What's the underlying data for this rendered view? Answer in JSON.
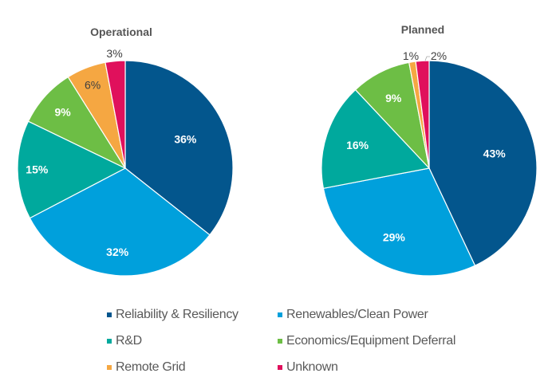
{
  "chart_data": [
    {
      "type": "pie",
      "title": "Operational",
      "categories": [
        "Reliability & Resiliency",
        "Renewables/Clean Power",
        "R&D",
        "Economics/Equipment Deferral",
        "Remote Grid",
        "Unknown"
      ],
      "values": [
        36,
        32,
        15,
        9,
        6,
        3
      ],
      "labels": [
        "36%",
        "32%",
        "15%",
        "9%",
        "6%",
        "3%"
      ],
      "start": "12 o'clock, clockwise"
    },
    {
      "type": "pie",
      "title": "Planned",
      "categories": [
        "Reliability & Resiliency",
        "Renewables/Clean Power",
        "R&D",
        "Economics/Equipment Deferral",
        "Remote Grid",
        "Unknown"
      ],
      "values": [
        43,
        29,
        16,
        9,
        1,
        2
      ],
      "labels": [
        "43%",
        "29%",
        "16%",
        "9%",
        "1%",
        "2%"
      ],
      "start": "12 o'clock, clockwise"
    }
  ],
  "colors": {
    "Reliability & Resiliency": "#03568D",
    "Renewables/Clean Power": "#00A0DC",
    "R&D": "#00A99D",
    "Economics/Equipment Deferral": "#6DBE45",
    "Remote Grid": "#F5A742",
    "Unknown": "#E0105C"
  },
  "legend": {
    "placement": "bottom",
    "items": [
      {
        "label": "Reliability & Resiliency",
        "color": "#03568D"
      },
      {
        "label": "Renewables/Clean Power",
        "color": "#00A0DC"
      },
      {
        "label": "R&D",
        "color": "#00A99D"
      },
      {
        "label": "Economics/Equipment Deferral",
        "color": "#6DBE45"
      },
      {
        "label": "Remote Grid",
        "color": "#F5A742"
      },
      {
        "label": "Unknown",
        "color": "#E0105C"
      }
    ]
  }
}
